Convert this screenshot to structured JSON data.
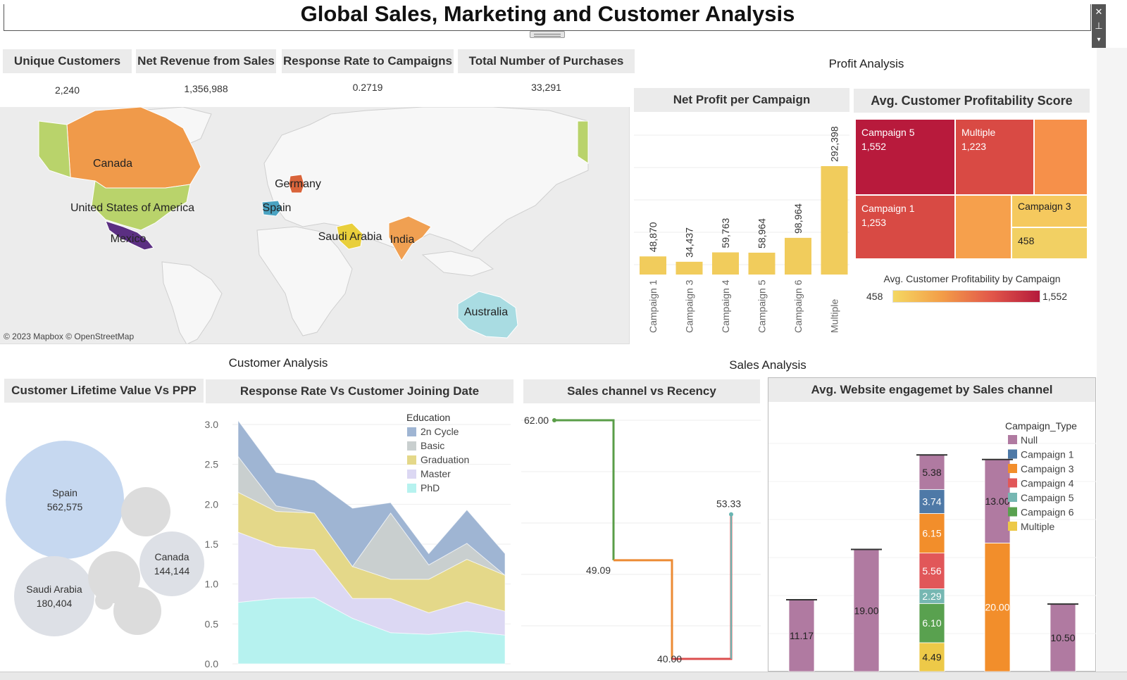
{
  "dashboard": {
    "title": "Global Sales, Marketing and Customer Analysis"
  },
  "kpis": [
    {
      "label": "Unique Customers",
      "value": "2,240"
    },
    {
      "label": "Net Revenue from Sales",
      "value": "1,356,988"
    },
    {
      "label": "Response Rate to Campaigns",
      "value": "0.2719"
    },
    {
      "label": "Total Number of Purchases",
      "value": "33,291"
    }
  ],
  "sections": {
    "profit": "Profit Analysis",
    "customer": "Customer Analysis",
    "sales": "Sales Analysis"
  },
  "map": {
    "attribution": "© 2023 Mapbox © OpenStreetMap",
    "countries": [
      {
        "name": "Canada",
        "color": "#f09a4a"
      },
      {
        "name": "United States of America",
        "color": "#b9d36b"
      },
      {
        "name": "Mexico",
        "color": "#5b2f82"
      },
      {
        "name": "Germany",
        "color": "#d9643a"
      },
      {
        "name": "Spain",
        "color": "#4aa3c2"
      },
      {
        "name": "Saudi Arabia",
        "color": "#e9cf3b"
      },
      {
        "name": "India",
        "color": "#f0a052"
      },
      {
        "name": "Australia",
        "color": "#a9dce2"
      }
    ]
  },
  "panels": {
    "net_profit": "Net Profit per Campaign",
    "profitability": "Avg. Customer Profitability Score",
    "clv": "Customer Lifetime Value Vs PPP",
    "response": "Response Rate Vs Customer Joining Date",
    "recency": "Sales channel vs Recency",
    "engagement": "Avg. Website engagemet by Sales channel"
  },
  "treemap": {
    "legend_title": "Avg. Customer Profitability by Campaign",
    "legend_min": "458",
    "legend_max": "1,552",
    "cells": [
      {
        "label": "Campaign 5",
        "value": "1,552",
        "color": "#b81a3c"
      },
      {
        "label": "Multiple",
        "value": "1,223",
        "color": "#d94a44"
      },
      {
        "label": "",
        "value": "",
        "color": "#f6904a"
      },
      {
        "label": "Campaign 1",
        "value": "1,253",
        "color": "#d84a44"
      },
      {
        "label": "",
        "value": "",
        "color": "#f6a04c"
      },
      {
        "label": "Campaign 3",
        "value": "",
        "color": "#f5c95e"
      },
      {
        "label": "",
        "value": "458",
        "color": "#f2d063"
      }
    ]
  },
  "chart_data": [
    {
      "type": "bar",
      "title": "Net Profit per Campaign",
      "categories": [
        "Campaign 1",
        "Campaign 3",
        "Campaign 4",
        "Campaign 5",
        "Campaign 6",
        "Multiple"
      ],
      "values": [
        48870,
        34437,
        59763,
        58964,
        98964,
        292398
      ],
      "labels": [
        "48,870",
        "34,437",
        "59,763",
        "58,964",
        "98,964",
        "292,398"
      ],
      "color": "#f1cc5c",
      "grid": true
    },
    {
      "type": "bubble",
      "title": "Customer Lifetime Value Vs PPP",
      "bubbles": [
        {
          "label": "Spain",
          "value": "562,575",
          "color": "#c6d8f0"
        },
        {
          "label": "Saudi Arabia",
          "value": "180,404",
          "color": "#dde0e6"
        },
        {
          "label": "Canada",
          "value": "144,144",
          "color": "#dde0e6"
        },
        {
          "label": "",
          "value": "",
          "color": "#dcdcdc"
        },
        {
          "label": "",
          "value": "",
          "color": "#dcdcdc"
        },
        {
          "label": "",
          "value": "",
          "color": "#dcdcdc"
        },
        {
          "label": "",
          "value": "",
          "color": "#dcdcdc"
        }
      ]
    },
    {
      "type": "area",
      "title": "Response Rate Vs Customer Joining Date",
      "ylim": [
        0,
        3.0
      ],
      "yticks": [
        "0.0",
        "0.5",
        "1.0",
        "1.5",
        "2.0",
        "2.5",
        "3.0"
      ],
      "legend_title": "Education",
      "legend_position": "top-right",
      "series": [
        {
          "name": "PhD",
          "color": "#b6f2ef",
          "values": [
            0.77,
            0.82,
            0.83,
            0.57,
            0.39,
            0.37,
            0.41,
            0.36
          ]
        },
        {
          "name": "Master",
          "color": "#dcd8f3",
          "values": [
            0.88,
            0.65,
            0.6,
            0.25,
            0.43,
            0.27,
            0.37,
            0.3
          ]
        },
        {
          "name": "Graduation",
          "color": "#e4d889",
          "values": [
            0.5,
            0.44,
            0.46,
            0.4,
            0.24,
            0.42,
            0.53,
            0.45
          ]
        },
        {
          "name": "Basic",
          "color": "#c9cfcf",
          "values": [
            0.45,
            0.07,
            0.0,
            0.0,
            0.83,
            0.18,
            0.2,
            0.0
          ]
        },
        {
          "name": "2n Cycle",
          "color": "#9fb5d3",
          "values": [
            0.45,
            0.42,
            0.41,
            0.73,
            0.13,
            0.14,
            0.42,
            0.27
          ]
        }
      ]
    },
    {
      "type": "line",
      "title": "Sales channel vs Recency",
      "step": true,
      "points": [
        {
          "value": 62.0,
          "label": "62.00",
          "color": "#5a9e48"
        },
        {
          "value": 49.09,
          "label": "49.09",
          "color": "#ec8b34"
        },
        {
          "value": 40.0,
          "label": "40.00",
          "color": "#dc4e4e"
        },
        {
          "value": 53.33,
          "label": "53.33",
          "color": "#6ab5b2"
        }
      ],
      "ylim": [
        40,
        62
      ]
    },
    {
      "type": "bar",
      "stacked": true,
      "title": "Avg. Website engagemet by Sales channel",
      "legend_title": "Campaign_Type",
      "legend_position": "right",
      "legend": [
        {
          "name": "Null",
          "color": "#b07aa1"
        },
        {
          "name": "Campaign 1",
          "color": "#4e79a7"
        },
        {
          "name": "Campaign 3",
          "color": "#f28e2b"
        },
        {
          "name": "Campaign 4",
          "color": "#e15759"
        },
        {
          "name": "Campaign 5",
          "color": "#76b7b2"
        },
        {
          "name": "Campaign 6",
          "color": "#59a14f"
        },
        {
          "name": "Multiple",
          "color": "#edc948"
        }
      ],
      "stacks": [
        {
          "segments": [
            {
              "series": "Null",
              "value": 11.17,
              "label": "11.17"
            }
          ]
        },
        {
          "segments": [
            {
              "series": "Null",
              "value": 19.0,
              "label": "19.00"
            }
          ]
        },
        {
          "segments": [
            {
              "series": "Multiple",
              "value": 4.49,
              "label": "4.49"
            },
            {
              "series": "Campaign 6",
              "value": 6.1,
              "label": "6.10"
            },
            {
              "series": "Campaign 5",
              "value": 2.29,
              "label": "2.29"
            },
            {
              "series": "Campaign 4",
              "value": 5.56,
              "label": "5.56"
            },
            {
              "series": "Campaign 3",
              "value": 6.15,
              "label": "6.15"
            },
            {
              "series": "Campaign 1",
              "value": 3.74,
              "label": "3.74"
            },
            {
              "series": "Null",
              "value": 5.38,
              "label": "5.38"
            }
          ]
        },
        {
          "segments": [
            {
              "series": "Campaign 3",
              "value": 20.0,
              "label": "20.00"
            },
            {
              "series": "Null",
              "value": 13.0,
              "label": "13.00"
            }
          ]
        },
        {
          "segments": [
            {
              "series": "Null",
              "value": 10.5,
              "label": "10.50"
            }
          ]
        }
      ]
    }
  ]
}
